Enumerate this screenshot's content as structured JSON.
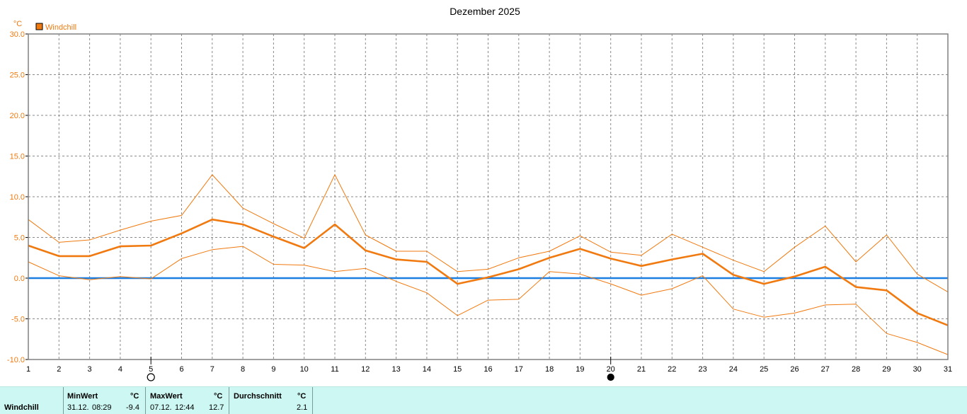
{
  "chart_data": {
    "type": "line",
    "title": "Dezember 2025",
    "unit": "°C",
    "x": [
      1,
      2,
      3,
      4,
      5,
      6,
      7,
      8,
      9,
      10,
      11,
      12,
      13,
      14,
      15,
      16,
      17,
      18,
      19,
      20,
      21,
      22,
      23,
      24,
      25,
      26,
      27,
      28,
      29,
      30,
      31
    ],
    "ylim": [
      -10,
      30
    ],
    "yticks": [
      "30.0",
      "25.0",
      "20.0",
      "15.0",
      "10.0",
      "5.0",
      "0.0",
      "-5.0",
      "-10.0"
    ],
    "grid": true,
    "legend": {
      "label": "Windchill",
      "position": "top-left",
      "color": "#f07a10"
    },
    "series": [
      {
        "name": "Windchill",
        "role": "avg",
        "color": "#f07a10",
        "values": [
          4.0,
          2.7,
          2.7,
          3.9,
          4.0,
          5.5,
          7.2,
          6.6,
          5.1,
          3.7,
          6.6,
          3.4,
          2.3,
          2.0,
          -0.7,
          0.1,
          1.1,
          2.5,
          3.6,
          2.4,
          1.5,
          2.3,
          3.0,
          0.4,
          -0.7,
          0.2,
          1.4,
          -1.1,
          -1.5,
          -4.3,
          -5.8
        ]
      },
      {
        "role": "max",
        "color": "#f07a10",
        "values": [
          7.2,
          4.4,
          4.7,
          5.9,
          7.0,
          7.7,
          12.7,
          8.6,
          6.7,
          4.9,
          12.7,
          5.3,
          3.3,
          3.3,
          0.8,
          1.1,
          2.5,
          3.3,
          5.2,
          3.2,
          2.8,
          5.4,
          3.8,
          2.2,
          0.8,
          3.8,
          6.4,
          2.0,
          5.3,
          0.5,
          -1.7
        ]
      },
      {
        "role": "min",
        "color": "#f07a10",
        "values": [
          2.0,
          0.3,
          -0.2,
          0.2,
          -0.1,
          2.4,
          3.5,
          3.9,
          1.7,
          1.6,
          0.8,
          1.2,
          -0.4,
          -1.8,
          -4.6,
          -2.7,
          -2.6,
          0.8,
          0.5,
          -0.7,
          -2.1,
          -1.3,
          0.3,
          -3.8,
          -4.8,
          -4.3,
          -3.3,
          -3.2,
          -6.8,
          -7.9,
          -9.4
        ]
      }
    ],
    "reference_line": {
      "y": 0,
      "color": "#1a7fe0"
    },
    "moon_phases": [
      {
        "day": 5,
        "phase": "full-moon"
      },
      {
        "day": 20,
        "phase": "new-moon"
      }
    ]
  },
  "stats": {
    "row_label": "Windchill",
    "min": {
      "header": "MinWert",
      "unit": "°C",
      "date": "31.12.",
      "time": "08:29",
      "value": "-9.4"
    },
    "max": {
      "header": "MaxWert",
      "unit": "°C",
      "date": "07.12.",
      "time": "12:44",
      "value": "12.7"
    },
    "avg": {
      "header": "Durchschnitt",
      "unit": "°C",
      "value": "2.1"
    }
  }
}
